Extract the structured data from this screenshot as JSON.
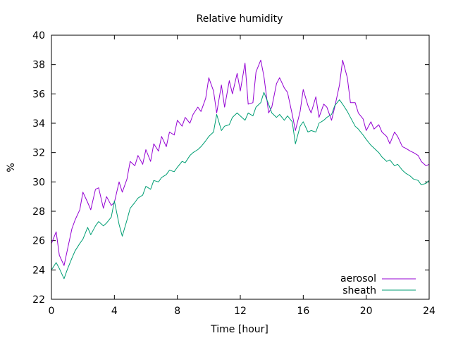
{
  "chart_data": {
    "type": "line",
    "title": "Relative humidity",
    "xlabel": "Time [hour]",
    "ylabel": "%",
    "xlim": [
      0,
      24
    ],
    "ylim": [
      22,
      40
    ],
    "xticks": [
      0,
      4,
      8,
      12,
      16,
      20,
      24
    ],
    "yticks": [
      22,
      24,
      26,
      28,
      30,
      32,
      34,
      36,
      38,
      40
    ],
    "grid": false,
    "legend_position": "bottom-right",
    "series": [
      {
        "name": "aerosol",
        "color": "#9400d3",
        "x": [
          0,
          0.3,
          0.5,
          0.8,
          1.0,
          1.3,
          1.5,
          1.8,
          2.0,
          2.3,
          2.5,
          2.8,
          3.0,
          3.3,
          3.5,
          3.8,
          4.0,
          4.3,
          4.5,
          4.8,
          5.0,
          5.3,
          5.5,
          5.8,
          6.0,
          6.3,
          6.5,
          6.8,
          7.0,
          7.3,
          7.5,
          7.8,
          8.0,
          8.3,
          8.5,
          8.8,
          9.0,
          9.3,
          9.5,
          9.8,
          10.0,
          10.3,
          10.5,
          10.8,
          11.0,
          11.3,
          11.5,
          11.8,
          12.0,
          12.3,
          12.5,
          12.8,
          13.0,
          13.3,
          13.5,
          13.8,
          14.0,
          14.3,
          14.5,
          14.8,
          15.0,
          15.3,
          15.5,
          15.8,
          16.0,
          16.3,
          16.5,
          16.8,
          17.0,
          17.3,
          17.5,
          17.8,
          18.0,
          18.3,
          18.5,
          18.8,
          19.0,
          19.3,
          19.5,
          19.8,
          20.0,
          20.3,
          20.5,
          20.8,
          21.0,
          21.3,
          21.5,
          21.8,
          22.0,
          22.3,
          22.5,
          22.8,
          23.0,
          23.3,
          23.5,
          23.8,
          24.0
        ],
        "y": [
          25.8,
          26.6,
          25.0,
          24.3,
          25.3,
          26.8,
          27.4,
          28.1,
          29.3,
          28.6,
          28.1,
          29.5,
          29.6,
          28.2,
          29.0,
          28.4,
          28.6,
          30.0,
          29.3,
          30.2,
          31.4,
          31.1,
          31.8,
          31.2,
          32.2,
          31.4,
          32.6,
          32.1,
          33.1,
          32.4,
          33.4,
          33.2,
          34.2,
          33.8,
          34.4,
          34.0,
          34.6,
          35.1,
          34.8,
          35.7,
          37.1,
          36.2,
          34.7,
          36.6,
          35.1,
          36.9,
          36.0,
          37.4,
          36.2,
          38.1,
          35.3,
          35.4,
          37.5,
          38.3,
          37.2,
          34.7,
          35.1,
          36.7,
          37.1,
          36.4,
          36.1,
          34.6,
          33.5,
          34.8,
          36.3,
          35.2,
          34.7,
          35.8,
          34.4,
          35.3,
          35.1,
          34.2,
          35.1,
          36.6,
          38.3,
          37.1,
          35.4,
          35.4,
          34.7,
          34.3,
          33.5,
          34.1,
          33.6,
          33.9,
          33.4,
          33.1,
          32.6,
          33.4,
          33.1,
          32.4,
          32.3,
          32.1,
          32.0,
          31.8,
          31.4,
          31.1,
          31.2
        ]
      },
      {
        "name": "sheath",
        "color": "#009e73",
        "x": [
          0,
          0.3,
          0.5,
          0.8,
          1.0,
          1.3,
          1.5,
          1.8,
          2.0,
          2.3,
          2.5,
          2.8,
          3.0,
          3.3,
          3.5,
          3.8,
          4.0,
          4.3,
          4.5,
          4.8,
          5.0,
          5.3,
          5.5,
          5.8,
          6.0,
          6.3,
          6.5,
          6.8,
          7.0,
          7.3,
          7.5,
          7.8,
          8.0,
          8.3,
          8.5,
          8.8,
          9.0,
          9.3,
          9.5,
          9.8,
          10.0,
          10.3,
          10.5,
          10.8,
          11.0,
          11.3,
          11.5,
          11.8,
          12.0,
          12.3,
          12.5,
          12.8,
          13.0,
          13.3,
          13.5,
          13.8,
          14.0,
          14.3,
          14.5,
          14.8,
          15.0,
          15.3,
          15.5,
          15.8,
          16.0,
          16.3,
          16.5,
          16.8,
          17.0,
          17.3,
          17.5,
          17.8,
          18.0,
          18.3,
          18.5,
          18.8,
          19.0,
          19.3,
          19.5,
          19.8,
          20.0,
          20.3,
          20.5,
          20.8,
          21.0,
          21.3,
          21.5,
          21.8,
          22.0,
          22.3,
          22.5,
          22.8,
          23.0,
          23.3,
          23.5,
          23.8,
          24.0
        ],
        "y": [
          24.0,
          24.5,
          24.1,
          23.4,
          24.0,
          24.8,
          25.3,
          25.8,
          26.1,
          26.9,
          26.4,
          27.0,
          27.3,
          27.0,
          27.2,
          27.6,
          28.7,
          27.1,
          26.3,
          27.4,
          28.2,
          28.6,
          28.9,
          29.1,
          29.7,
          29.5,
          30.1,
          30.0,
          30.3,
          30.5,
          30.8,
          30.7,
          31.0,
          31.4,
          31.3,
          31.8,
          32.0,
          32.2,
          32.4,
          32.8,
          33.1,
          33.4,
          34.6,
          33.5,
          33.8,
          33.9,
          34.4,
          34.7,
          34.5,
          34.2,
          34.7,
          34.5,
          35.1,
          35.4,
          36.1,
          35.3,
          34.7,
          34.4,
          34.6,
          34.2,
          34.5,
          34.1,
          32.6,
          33.8,
          34.1,
          33.4,
          33.5,
          33.4,
          34.0,
          34.2,
          34.4,
          34.6,
          35.2,
          35.6,
          35.3,
          34.8,
          34.4,
          33.8,
          33.6,
          33.2,
          32.9,
          32.5,
          32.3,
          32.0,
          31.7,
          31.4,
          31.5,
          31.1,
          31.2,
          30.8,
          30.6,
          30.4,
          30.2,
          30.1,
          29.8,
          29.9,
          30.1
        ]
      }
    ]
  }
}
